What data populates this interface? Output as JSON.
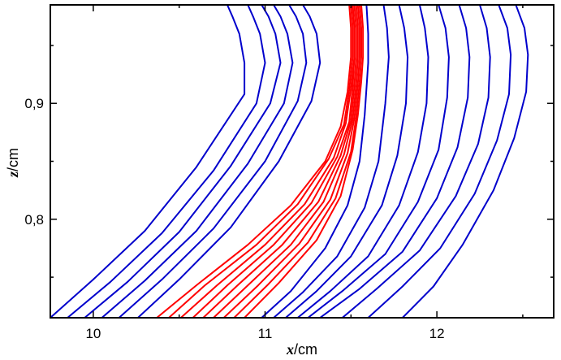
{
  "chart_data": {
    "type": "line",
    "xlabel_var": "x",
    "xlabel_unit": "/cm",
    "ylabel_var": "z",
    "ylabel_unit": "/cm",
    "xlim": [
      9.75,
      12.68
    ],
    "ylim": [
      0.715,
      0.985
    ],
    "x_ticks": [
      {
        "value": 10,
        "label": "10"
      },
      {
        "value": 11,
        "label": "11"
      },
      {
        "value": 12,
        "label": "12"
      }
    ],
    "y_ticks": [
      {
        "value": 0.8,
        "label": "0,8"
      },
      {
        "value": 0.9,
        "label": "0,9"
      }
    ],
    "grid": false,
    "colors": {
      "blue": "#0000cc",
      "red": "#ff0000"
    },
    "series": [
      {
        "color": "blue",
        "points": [
          [
            9.75,
            0.715
          ],
          [
            10.0,
            0.748
          ],
          [
            10.3,
            0.79
          ],
          [
            10.6,
            0.845
          ],
          [
            10.88,
            0.908
          ],
          [
            10.88,
            0.935
          ],
          [
            10.85,
            0.96
          ],
          [
            10.81,
            0.975
          ],
          [
            10.78,
            0.985
          ]
        ]
      },
      {
        "color": "blue",
        "points": [
          [
            9.85,
            0.715
          ],
          [
            10.1,
            0.746
          ],
          [
            10.4,
            0.788
          ],
          [
            10.7,
            0.842
          ],
          [
            10.95,
            0.9
          ],
          [
            11.0,
            0.935
          ],
          [
            10.97,
            0.96
          ],
          [
            10.93,
            0.975
          ],
          [
            10.9,
            0.985
          ]
        ]
      },
      {
        "color": "blue",
        "points": [
          [
            9.95,
            0.715
          ],
          [
            10.2,
            0.746
          ],
          [
            10.5,
            0.789
          ],
          [
            10.8,
            0.846
          ],
          [
            11.03,
            0.9
          ],
          [
            11.09,
            0.935
          ],
          [
            11.06,
            0.96
          ],
          [
            11.02,
            0.975
          ],
          [
            10.98,
            0.985
          ]
        ]
      },
      {
        "color": "blue",
        "points": [
          [
            10.05,
            0.715
          ],
          [
            10.3,
            0.747
          ],
          [
            10.6,
            0.79
          ],
          [
            10.9,
            0.848
          ],
          [
            11.11,
            0.9
          ],
          [
            11.16,
            0.935
          ],
          [
            11.13,
            0.96
          ],
          [
            11.09,
            0.975
          ],
          [
            11.05,
            0.985
          ]
        ]
      },
      {
        "color": "blue",
        "points": [
          [
            10.15,
            0.715
          ],
          [
            10.4,
            0.748
          ],
          [
            10.7,
            0.792
          ],
          [
            11.0,
            0.85
          ],
          [
            11.19,
            0.902
          ],
          [
            11.24,
            0.935
          ],
          [
            11.22,
            0.96
          ],
          [
            11.18,
            0.975
          ],
          [
            11.14,
            0.985
          ]
        ]
      },
      {
        "color": "blue",
        "points": [
          [
            10.26,
            0.715
          ],
          [
            10.5,
            0.748
          ],
          [
            10.8,
            0.793
          ],
          [
            11.08,
            0.85
          ],
          [
            11.27,
            0.902
          ],
          [
            11.32,
            0.935
          ],
          [
            11.3,
            0.96
          ],
          [
            11.26,
            0.975
          ],
          [
            11.22,
            0.985
          ]
        ]
      },
      {
        "color": "red",
        "points": [
          [
            10.37,
            0.715
          ],
          [
            10.6,
            0.743
          ],
          [
            10.9,
            0.778
          ],
          [
            11.15,
            0.812
          ],
          [
            11.35,
            0.85
          ],
          [
            11.44,
            0.88
          ],
          [
            11.48,
            0.91
          ],
          [
            11.5,
            0.94
          ],
          [
            11.5,
            0.965
          ],
          [
            11.49,
            0.985
          ]
        ]
      },
      {
        "color": "red",
        "points": [
          [
            10.44,
            0.715
          ],
          [
            10.65,
            0.743
          ],
          [
            10.95,
            0.778
          ],
          [
            11.19,
            0.813
          ],
          [
            11.37,
            0.852
          ],
          [
            11.46,
            0.882
          ],
          [
            11.49,
            0.912
          ],
          [
            11.51,
            0.94
          ],
          [
            11.51,
            0.965
          ],
          [
            11.5,
            0.985
          ]
        ]
      },
      {
        "color": "red",
        "points": [
          [
            10.51,
            0.715
          ],
          [
            10.72,
            0.743
          ],
          [
            11.0,
            0.778
          ],
          [
            11.23,
            0.813
          ],
          [
            11.4,
            0.853
          ],
          [
            11.47,
            0.883
          ],
          [
            11.5,
            0.913
          ],
          [
            11.52,
            0.94
          ],
          [
            11.52,
            0.965
          ],
          [
            11.51,
            0.985
          ]
        ]
      },
      {
        "color": "red",
        "points": [
          [
            10.58,
            0.715
          ],
          [
            10.78,
            0.743
          ],
          [
            11.05,
            0.778
          ],
          [
            11.27,
            0.814
          ],
          [
            11.42,
            0.854
          ],
          [
            11.49,
            0.884
          ],
          [
            11.51,
            0.914
          ],
          [
            11.52,
            0.94
          ],
          [
            11.52,
            0.965
          ],
          [
            11.51,
            0.985
          ]
        ]
      },
      {
        "color": "red",
        "points": [
          [
            10.64,
            0.715
          ],
          [
            10.84,
            0.743
          ],
          [
            11.1,
            0.778
          ],
          [
            11.31,
            0.815
          ],
          [
            11.44,
            0.855
          ],
          [
            11.5,
            0.885
          ],
          [
            11.52,
            0.915
          ],
          [
            11.53,
            0.94
          ],
          [
            11.53,
            0.965
          ],
          [
            11.52,
            0.985
          ]
        ]
      },
      {
        "color": "red",
        "points": [
          [
            10.7,
            0.715
          ],
          [
            10.9,
            0.743
          ],
          [
            11.15,
            0.778
          ],
          [
            11.34,
            0.815
          ],
          [
            11.46,
            0.856
          ],
          [
            11.51,
            0.886
          ],
          [
            11.53,
            0.916
          ],
          [
            11.54,
            0.94
          ],
          [
            11.54,
            0.965
          ],
          [
            11.53,
            0.985
          ]
        ]
      },
      {
        "color": "red",
        "points": [
          [
            10.76,
            0.715
          ],
          [
            10.96,
            0.743
          ],
          [
            11.2,
            0.779
          ],
          [
            11.38,
            0.817
          ],
          [
            11.48,
            0.857
          ],
          [
            11.52,
            0.887
          ],
          [
            11.54,
            0.917
          ],
          [
            11.55,
            0.94
          ],
          [
            11.55,
            0.965
          ],
          [
            11.54,
            0.985
          ]
        ]
      },
      {
        "color": "red",
        "points": [
          [
            10.82,
            0.715
          ],
          [
            11.02,
            0.744
          ],
          [
            11.25,
            0.78
          ],
          [
            11.41,
            0.818
          ],
          [
            11.5,
            0.858
          ],
          [
            11.53,
            0.888
          ],
          [
            11.55,
            0.918
          ],
          [
            11.56,
            0.94
          ],
          [
            11.56,
            0.965
          ],
          [
            11.55,
            0.985
          ]
        ]
      },
      {
        "color": "red",
        "points": [
          [
            10.88,
            0.715
          ],
          [
            11.08,
            0.745
          ],
          [
            11.3,
            0.782
          ],
          [
            11.44,
            0.82
          ],
          [
            11.51,
            0.86
          ],
          [
            11.54,
            0.89
          ],
          [
            11.56,
            0.919
          ],
          [
            11.57,
            0.94
          ],
          [
            11.57,
            0.965
          ],
          [
            11.56,
            0.985
          ]
        ]
      },
      {
        "color": "blue",
        "points": [
          [
            10.98,
            0.715
          ],
          [
            11.15,
            0.738
          ],
          [
            11.35,
            0.775
          ],
          [
            11.48,
            0.812
          ],
          [
            11.55,
            0.85
          ],
          [
            11.58,
            0.89
          ],
          [
            11.6,
            0.935
          ],
          [
            11.6,
            0.96
          ],
          [
            11.59,
            0.985
          ]
        ]
      },
      {
        "color": "blue",
        "points": [
          [
            11.05,
            0.715
          ],
          [
            11.22,
            0.737
          ],
          [
            11.42,
            0.768
          ],
          [
            11.58,
            0.81
          ],
          [
            11.66,
            0.85
          ],
          [
            11.7,
            0.9
          ],
          [
            11.72,
            0.94
          ],
          [
            11.71,
            0.965
          ],
          [
            11.69,
            0.985
          ]
        ]
      },
      {
        "color": "blue",
        "points": [
          [
            11.12,
            0.715
          ],
          [
            11.3,
            0.738
          ],
          [
            11.5,
            0.768
          ],
          [
            11.68,
            0.812
          ],
          [
            11.77,
            0.855
          ],
          [
            11.82,
            0.9
          ],
          [
            11.83,
            0.94
          ],
          [
            11.81,
            0.965
          ],
          [
            11.78,
            0.985
          ]
        ]
      },
      {
        "color": "blue",
        "points": [
          [
            11.19,
            0.715
          ],
          [
            11.38,
            0.738
          ],
          [
            11.6,
            0.768
          ],
          [
            11.78,
            0.812
          ],
          [
            11.89,
            0.858
          ],
          [
            11.94,
            0.9
          ],
          [
            11.95,
            0.94
          ],
          [
            11.93,
            0.965
          ],
          [
            11.9,
            0.985
          ]
        ]
      },
      {
        "color": "blue",
        "points": [
          [
            11.25,
            0.715
          ],
          [
            11.45,
            0.738
          ],
          [
            11.7,
            0.77
          ],
          [
            11.89,
            0.815
          ],
          [
            12.01,
            0.86
          ],
          [
            12.06,
            0.905
          ],
          [
            12.07,
            0.94
          ],
          [
            12.05,
            0.965
          ],
          [
            12.01,
            0.985
          ]
        ]
      },
      {
        "color": "blue",
        "points": [
          [
            11.32,
            0.715
          ],
          [
            11.55,
            0.74
          ],
          [
            11.8,
            0.772
          ],
          [
            12.0,
            0.818
          ],
          [
            12.12,
            0.862
          ],
          [
            12.18,
            0.905
          ],
          [
            12.19,
            0.94
          ],
          [
            12.17,
            0.965
          ],
          [
            12.13,
            0.985
          ]
        ]
      },
      {
        "color": "blue",
        "points": [
          [
            11.45,
            0.715
          ],
          [
            11.65,
            0.74
          ],
          [
            11.9,
            0.773
          ],
          [
            12.11,
            0.82
          ],
          [
            12.24,
            0.865
          ],
          [
            12.3,
            0.905
          ],
          [
            12.31,
            0.94
          ],
          [
            12.29,
            0.965
          ],
          [
            12.25,
            0.985
          ]
        ]
      },
      {
        "color": "blue",
        "points": [
          [
            11.6,
            0.715
          ],
          [
            11.8,
            0.742
          ],
          [
            12.02,
            0.775
          ],
          [
            12.22,
            0.822
          ],
          [
            12.35,
            0.868
          ],
          [
            12.42,
            0.908
          ],
          [
            12.43,
            0.942
          ],
          [
            12.41,
            0.965
          ],
          [
            12.36,
            0.985
          ]
        ]
      },
      {
        "color": "blue",
        "points": [
          [
            11.8,
            0.715
          ],
          [
            11.98,
            0.742
          ],
          [
            12.15,
            0.778
          ],
          [
            12.33,
            0.825
          ],
          [
            12.45,
            0.87
          ],
          [
            12.52,
            0.91
          ],
          [
            12.53,
            0.942
          ],
          [
            12.51,
            0.965
          ],
          [
            12.46,
            0.985
          ]
        ]
      }
    ]
  }
}
